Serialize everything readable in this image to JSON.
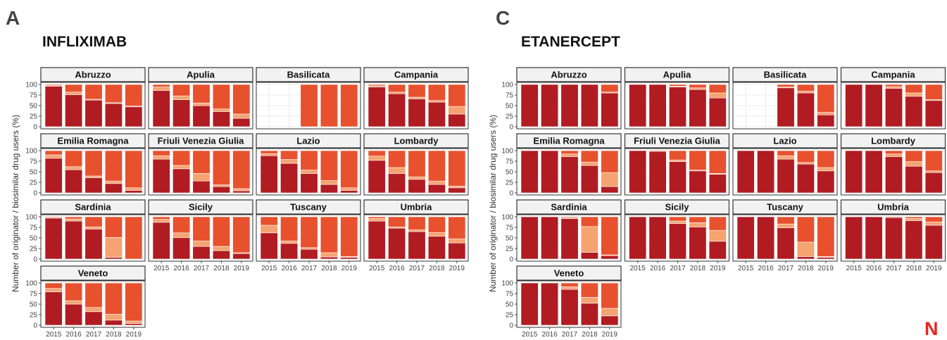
{
  "panels": [
    {
      "letter": "A",
      "title": "INFLIXIMAB"
    },
    {
      "letter": "C",
      "title": "ETANERCEPT"
    }
  ],
  "y_axis_label": "Number of originator / biosimilar drug users (%)",
  "logo": "N",
  "colors": {
    "originator": "#b01c22",
    "biosimilar_1": "#f4a371",
    "biosimilar_2": "#e8512e",
    "strip_bg": "#f2f2f2",
    "grid": "#ebebeb"
  },
  "chart_data": [
    {
      "type": "bar",
      "title": "INFLIXIMAB",
      "ylabel": "Number of originator / biosimilar drug users (%)",
      "ylim": [
        0,
        100
      ],
      "y_ticks": [
        0,
        25,
        50,
        75,
        100
      ],
      "categories": [
        "2015",
        "2016",
        "2017",
        "2018",
        "2019"
      ],
      "stack_order": [
        "originator",
        "biosimilar_1",
        "biosimilar_2"
      ],
      "facets": [
        {
          "name": "Abruzzo",
          "values": [
            [
              96,
              2,
              2
            ],
            [
              76,
              6,
              18
            ],
            [
              63,
              2,
              35
            ],
            [
              55,
              2,
              43
            ],
            [
              47,
              2,
              51
            ]
          ]
        },
        {
          "name": "Apulia",
          "values": [
            [
              86,
              8,
              6
            ],
            [
              64,
              9,
              27
            ],
            [
              50,
              6,
              44
            ],
            [
              36,
              6,
              58
            ],
            [
              20,
              10,
              70
            ]
          ]
        },
        {
          "name": "Basilicata",
          "values": [
            null,
            null,
            [
              0,
              0,
              100
            ],
            [
              0,
              0,
              100
            ],
            [
              0,
              0,
              100
            ]
          ]
        },
        {
          "name": "Campania",
          "values": [
            [
              94,
              3,
              3
            ],
            [
              78,
              4,
              18
            ],
            [
              66,
              4,
              30
            ],
            [
              58,
              4,
              38
            ],
            [
              30,
              18,
              52
            ]
          ]
        },
        {
          "name": "Emilia Romagna",
          "values": [
            [
              82,
              8,
              10
            ],
            [
              55,
              7,
              38
            ],
            [
              36,
              4,
              60
            ],
            [
              22,
              6,
              72
            ],
            [
              6,
              6,
              88
            ]
          ]
        },
        {
          "name": "Friuli Venezia Giulia",
          "values": [
            [
              80,
              8,
              12
            ],
            [
              57,
              8,
              35
            ],
            [
              28,
              18,
              54
            ],
            [
              15,
              4,
              81
            ],
            [
              5,
              5,
              90
            ]
          ]
        },
        {
          "name": "Lazio",
          "values": [
            [
              88,
              5,
              7
            ],
            [
              70,
              9,
              21
            ],
            [
              46,
              8,
              46
            ],
            [
              20,
              9,
              71
            ],
            [
              6,
              6,
              88
            ]
          ]
        },
        {
          "name": "Lombardy",
          "values": [
            [
              77,
              10,
              13
            ],
            [
              46,
              14,
              40
            ],
            [
              32,
              6,
              62
            ],
            [
              20,
              8,
              72
            ],
            [
              12,
              4,
              84
            ]
          ]
        },
        {
          "name": "Sardinia",
          "values": [
            [
              97,
              1,
              2
            ],
            [
              90,
              5,
              5
            ],
            [
              71,
              5,
              24
            ],
            [
              4,
              47,
              49
            ],
            [
              0,
              0,
              100
            ]
          ]
        },
        {
          "name": "Sicily",
          "values": [
            [
              87,
              7,
              6
            ],
            [
              51,
              11,
              38
            ],
            [
              30,
              13,
              57
            ],
            [
              20,
              10,
              70
            ],
            [
              13,
              2,
              85
            ]
          ]
        },
        {
          "name": "Tuscany",
          "values": [
            [
              62,
              18,
              20
            ],
            [
              37,
              6,
              57
            ],
            [
              23,
              4,
              73
            ],
            [
              5,
              10,
              85
            ],
            [
              4,
              2,
              94
            ]
          ]
        },
        {
          "name": "Umbria",
          "values": [
            [
              90,
              6,
              4
            ],
            [
              73,
              3,
              24
            ],
            [
              65,
              4,
              31
            ],
            [
              54,
              9,
              37
            ],
            [
              38,
              10,
              52
            ]
          ]
        },
        {
          "name": "Veneto",
          "values": [
            [
              79,
              8,
              13
            ],
            [
              50,
              8,
              42
            ],
            [
              32,
              10,
              58
            ],
            [
              12,
              14,
              74
            ],
            [
              4,
              6,
              90
            ]
          ]
        }
      ]
    },
    {
      "type": "bar",
      "title": "ETANERCEPT",
      "ylabel": "Number of originator / biosimilar drug users (%)",
      "ylim": [
        0,
        100
      ],
      "y_ticks": [
        0,
        25,
        50,
        75,
        100
      ],
      "categories": [
        "2015",
        "2016",
        "2017",
        "2018",
        "2019"
      ],
      "stack_order": [
        "originator",
        "biosimilar_1",
        "biosimilar_2"
      ],
      "facets": [
        {
          "name": "Abruzzo",
          "values": [
            [
              100,
              0,
              0
            ],
            [
              100,
              0,
              0
            ],
            [
              100,
              0,
              0
            ],
            [
              100,
              0,
              0
            ],
            [
              80,
              2,
              18
            ]
          ]
        },
        {
          "name": "Apulia",
          "values": [
            [
              100,
              0,
              0
            ],
            [
              100,
              0,
              0
            ],
            [
              94,
              2,
              4
            ],
            [
              88,
              4,
              8
            ],
            [
              68,
              12,
              20
            ]
          ]
        },
        {
          "name": "Basilicata",
          "values": [
            null,
            null,
            [
              92,
              2,
              6
            ],
            [
              80,
              4,
              16
            ],
            [
              28,
              6,
              66
            ]
          ]
        },
        {
          "name": "Campania",
          "values": [
            [
              100,
              0,
              0
            ],
            [
              100,
              0,
              0
            ],
            [
              91,
              4,
              5
            ],
            [
              72,
              8,
              20
            ],
            [
              62,
              2,
              36
            ]
          ]
        },
        {
          "name": "Emilia Romagna",
          "values": [
            [
              100,
              0,
              0
            ],
            [
              100,
              0,
              0
            ],
            [
              86,
              6,
              8
            ],
            [
              65,
              8,
              27
            ],
            [
              15,
              33,
              52
            ]
          ]
        },
        {
          "name": "Friuli Venezia Giulia",
          "values": [
            [
              100,
              0,
              0
            ],
            [
              98,
              0,
              2
            ],
            [
              74,
              4,
              22
            ],
            [
              52,
              2,
              46
            ],
            [
              44,
              2,
              54
            ]
          ]
        },
        {
          "name": "Lazio",
          "values": [
            [
              100,
              0,
              0
            ],
            [
              100,
              0,
              0
            ],
            [
              80,
              8,
              12
            ],
            [
              68,
              4,
              28
            ],
            [
              52,
              8,
              40
            ]
          ]
        },
        {
          "name": "Lombardy",
          "values": [
            [
              100,
              0,
              0
            ],
            [
              100,
              0,
              0
            ],
            [
              86,
              6,
              8
            ],
            [
              63,
              11,
              26
            ],
            [
              48,
              4,
              48
            ]
          ]
        },
        {
          "name": "Sardinia",
          "values": [
            [
              100,
              0,
              0
            ],
            [
              100,
              0,
              0
            ],
            [
              96,
              2,
              2
            ],
            [
              16,
              61,
              23
            ],
            [
              8,
              2,
              90
            ]
          ]
        },
        {
          "name": "Sicily",
          "values": [
            [
              100,
              0,
              0
            ],
            [
              100,
              0,
              0
            ],
            [
              84,
              6,
              10
            ],
            [
              76,
              10,
              14
            ],
            [
              42,
              26,
              32
            ]
          ]
        },
        {
          "name": "Tuscany",
          "values": [
            [
              100,
              0,
              0
            ],
            [
              100,
              0,
              0
            ],
            [
              74,
              9,
              17
            ],
            [
              6,
              34,
              60
            ],
            [
              4,
              2,
              94
            ]
          ]
        },
        {
          "name": "Umbria",
          "values": [
            [
              100,
              0,
              0
            ],
            [
              100,
              0,
              0
            ],
            [
              98,
              0,
              2
            ],
            [
              91,
              5,
              4
            ],
            [
              80,
              8,
              12
            ]
          ]
        },
        {
          "name": "Veneto",
          "values": [
            [
              100,
              0,
              0
            ],
            [
              100,
              0,
              0
            ],
            [
              85,
              6,
              9
            ],
            [
              52,
              14,
              34
            ],
            [
              22,
              18,
              60
            ]
          ]
        }
      ]
    }
  ]
}
